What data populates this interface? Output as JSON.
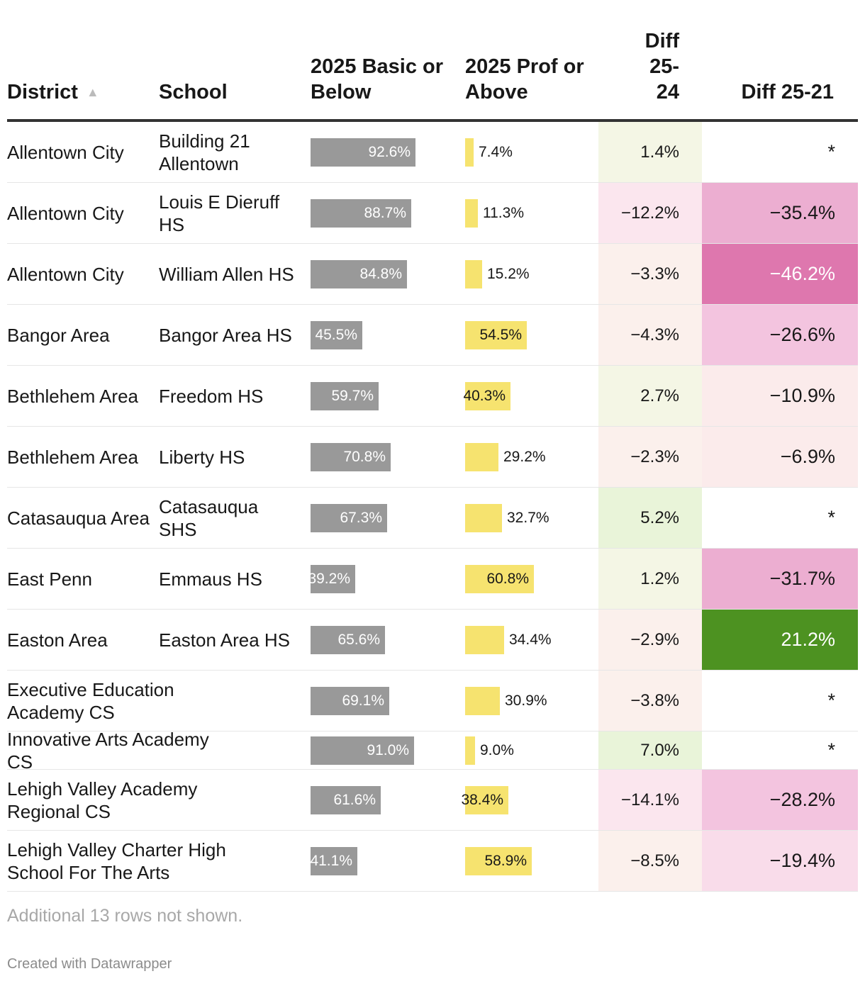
{
  "chart_data": {
    "type": "table",
    "columns": {
      "district": "District",
      "school": "School",
      "basic": "2025 Basic or Below",
      "prof": "2025 Prof or Above",
      "diff2524": "Diff 25-24",
      "diff2521": "Diff 25-21"
    },
    "sort_indicator": "▲",
    "rows": [
      {
        "district": "Allentown City",
        "school": "Building 21 Allentown",
        "basic": 92.6,
        "basic_label": "92.6%",
        "prof": 7.4,
        "prof_label": "7.4%",
        "diff2524": 1.4,
        "diff2524_label": "1.4%",
        "diff2521": null,
        "diff2521_label": "*"
      },
      {
        "district": "Allentown City",
        "school": "Louis E Dieruff HS",
        "basic": 88.7,
        "basic_label": "88.7%",
        "prof": 11.3,
        "prof_label": "11.3%",
        "diff2524": -12.2,
        "diff2524_label": "−12.2%",
        "diff2521": -35.4,
        "diff2521_label": "−35.4%"
      },
      {
        "district": "Allentown City",
        "school": "William Allen HS",
        "basic": 84.8,
        "basic_label": "84.8%",
        "prof": 15.2,
        "prof_label": "15.2%",
        "diff2524": -3.3,
        "diff2524_label": "−3.3%",
        "diff2521": -46.2,
        "diff2521_label": "−46.2%"
      },
      {
        "district": "Bangor Area",
        "school": "Bangor Area HS",
        "basic": 45.5,
        "basic_label": "45.5%",
        "prof": 54.5,
        "prof_label": "54.5%",
        "diff2524": -4.3,
        "diff2524_label": "−4.3%",
        "diff2521": -26.6,
        "diff2521_label": "−26.6%"
      },
      {
        "district": "Bethlehem Area",
        "school": "Freedom HS",
        "basic": 59.7,
        "basic_label": "59.7%",
        "prof": 40.3,
        "prof_label": "40.3%",
        "diff2524": 2.7,
        "diff2524_label": "2.7%",
        "diff2521": -10.9,
        "diff2521_label": "−10.9%"
      },
      {
        "district": "Bethlehem Area",
        "school": "Liberty HS",
        "basic": 70.8,
        "basic_label": "70.8%",
        "prof": 29.2,
        "prof_label": "29.2%",
        "diff2524": -2.3,
        "diff2524_label": "−2.3%",
        "diff2521": -6.9,
        "diff2521_label": "−6.9%"
      },
      {
        "district": "Catasauqua Area",
        "school": "Catasauqua SHS",
        "basic": 67.3,
        "basic_label": "67.3%",
        "prof": 32.7,
        "prof_label": "32.7%",
        "diff2524": 5.2,
        "diff2524_label": "5.2%",
        "diff2521": null,
        "diff2521_label": "*"
      },
      {
        "district": "East Penn",
        "school": "Emmaus HS",
        "basic": 39.2,
        "basic_label": "39.2%",
        "prof": 60.8,
        "prof_label": "60.8%",
        "diff2524": 1.2,
        "diff2524_label": "1.2%",
        "diff2521": -31.7,
        "diff2521_label": "−31.7%"
      },
      {
        "district": "Easton Area",
        "school": "Easton Area HS",
        "basic": 65.6,
        "basic_label": "65.6%",
        "prof": 34.4,
        "prof_label": "34.4%",
        "diff2524": -2.9,
        "diff2524_label": "−2.9%",
        "diff2521": 21.2,
        "diff2521_label": "21.2%"
      },
      {
        "district": "Executive Education Academy CS",
        "school": "",
        "basic": 69.1,
        "basic_label": "69.1%",
        "prof": 30.9,
        "prof_label": "30.9%",
        "diff2524": -3.8,
        "diff2524_label": "−3.8%",
        "diff2521": null,
        "diff2521_label": "*"
      },
      {
        "district": "Innovative Arts Academy CS",
        "school": "",
        "basic": 91.0,
        "basic_label": "91.0%",
        "prof": 9.0,
        "prof_label": "9.0%",
        "diff2524": 7.0,
        "diff2524_label": "7.0%",
        "diff2521": null,
        "diff2521_label": "*"
      },
      {
        "district": "Lehigh Valley Academy Regional CS",
        "school": "",
        "basic": 61.6,
        "basic_label": "61.6%",
        "prof": 38.4,
        "prof_label": "38.4%",
        "diff2524": -14.1,
        "diff2524_label": "−14.1%",
        "diff2521": -28.2,
        "diff2521_label": "−28.2%"
      },
      {
        "district": "Lehigh Valley Charter High School For The Arts",
        "school": "",
        "basic": 41.1,
        "basic_label": "41.1%",
        "prof": 58.9,
        "prof_label": "58.9%",
        "diff2524": -8.5,
        "diff2524_label": "−8.5%",
        "diff2521": -19.4,
        "diff2521_label": "−19.4%"
      }
    ],
    "colors": {
      "basic_bar": "#999999",
      "prof_bar": "#f6e36f",
      "strong_positive": "#4d9221",
      "strong_negative": "#de77ae"
    }
  },
  "footnote": "Additional 13 rows not shown.",
  "credit": "Created with Datawrapper"
}
